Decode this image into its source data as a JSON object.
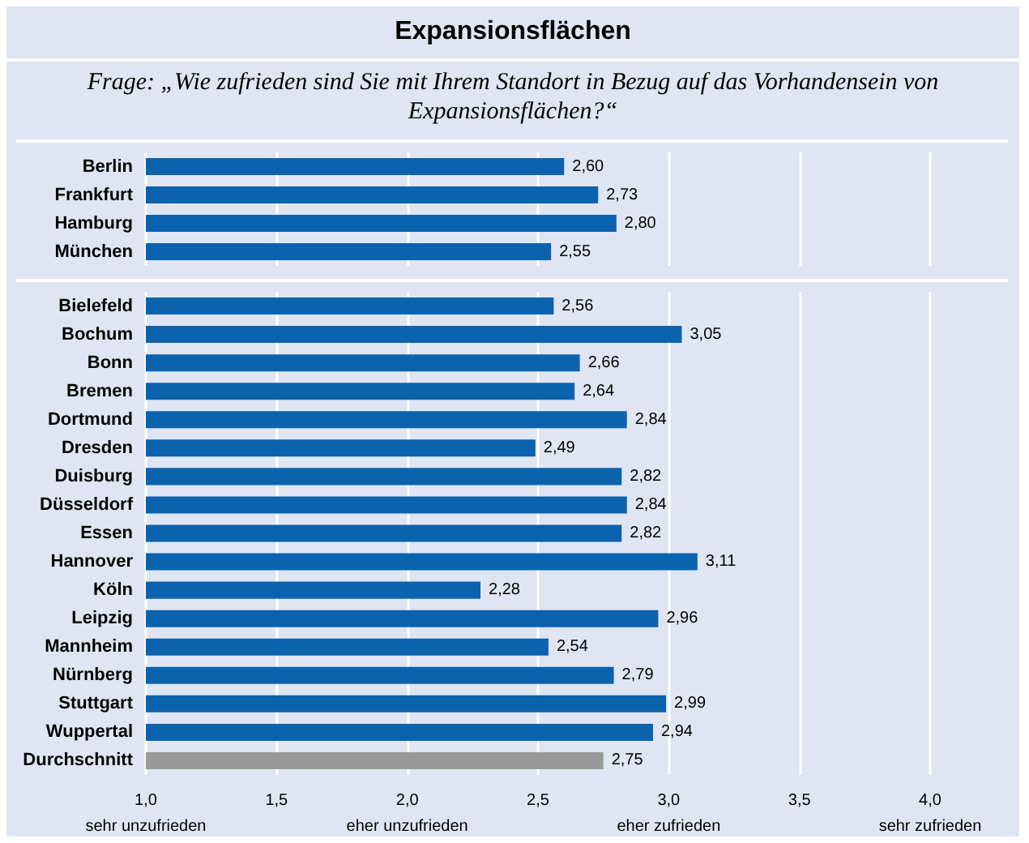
{
  "chart_data": [
    {
      "type": "bar",
      "orientation": "horizontal",
      "title": "Expansionsflächen",
      "subtitle": "Frage: „Wie zufrieden sind Sie mit Ihrem Standort in Bezug auf das Vorhandensein von Expansionsflächen?“",
      "categories": [
        "Berlin",
        "Frankfurt",
        "Hamburg",
        "München"
      ],
      "values": [
        2.6,
        2.73,
        2.8,
        2.55
      ],
      "colors": [
        "#0b63ae",
        "#0b63ae",
        "#0b63ae",
        "#0b63ae"
      ],
      "value_labels": [
        "2,60",
        "2,73",
        "2,80",
        "2,55"
      ],
      "xlim": [
        1,
        4
      ],
      "xticks": [
        {
          "value": 1,
          "label": null
        },
        {
          "value": 1.5,
          "label": null
        },
        {
          "value": 2,
          "label": null
        },
        {
          "value": 2.5,
          "label": null
        },
        {
          "value": 3,
          "label": null
        },
        {
          "value": 3.5,
          "label": null
        },
        {
          "value": 4,
          "label": null
        }
      ],
      "grid": "x",
      "tick_labels": "y"
    },
    {
      "type": "bar",
      "orientation": "horizontal",
      "categories": [
        "Bielefeld",
        "Bochum",
        "Bonn",
        "Bremen",
        "Dortmund",
        "Dresden",
        "Duisburg",
        "Düsseldorf",
        "Essen",
        "Hannover",
        "Köln",
        "Leipzig",
        "Mannheim",
        "Nürnberg",
        "Stuttgart",
        "Wuppertal",
        "Durchschnitt"
      ],
      "values": [
        2.56,
        3.05,
        2.66,
        2.64,
        2.84,
        2.49,
        2.82,
        2.84,
        2.82,
        3.11,
        2.28,
        2.96,
        2.54,
        2.79,
        2.99,
        2.94,
        2.75
      ],
      "colors": [
        "#0b63ae",
        "#0b63ae",
        "#0b63ae",
        "#0b63ae",
        "#0b63ae",
        "#0b63ae",
        "#0b63ae",
        "#0b63ae",
        "#0b63ae",
        "#0b63ae",
        "#0b63ae",
        "#0b63ae",
        "#0b63ae",
        "#0b63ae",
        "#0b63ae",
        "#0b63ae",
        "#999999"
      ],
      "value_labels": [
        "2,56",
        "3,05",
        "2,66",
        "2,64",
        "2,84",
        "2,49",
        "2,82",
        "2,84",
        "2,82",
        "3,11",
        "2,28",
        "2,96",
        "2,54",
        "2,79",
        "2,99",
        "2,94",
        "2,75"
      ],
      "xlim": [
        1,
        4
      ],
      "xticks": [
        {
          "value": 1,
          "label": "1,0\nsehr unzufrieden"
        },
        {
          "value": 1.5,
          "label": "1,5"
        },
        {
          "value": 2,
          "label": "2,0\neher unzufrieden"
        },
        {
          "value": 2.5,
          "label": "2,5"
        },
        {
          "value": 3,
          "label": "3,0\neher zufrieden"
        },
        {
          "value": 3.5,
          "label": "3,5"
        },
        {
          "value": 4,
          "label": "4,0\nsehr zufrieden"
        }
      ],
      "grid": "x"
    }
  ]
}
